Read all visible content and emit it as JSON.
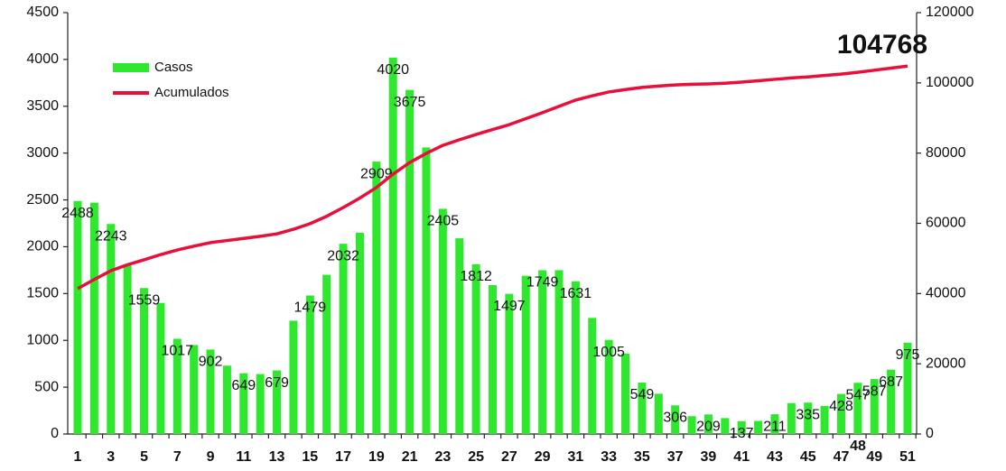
{
  "chart_data": {
    "type": "bar_line",
    "categories": [
      "1",
      null,
      "3",
      null,
      "5",
      null,
      "7",
      null,
      "9",
      null,
      "11",
      null,
      "13",
      null,
      "15",
      null,
      "17",
      null,
      "19",
      null,
      "21",
      null,
      "23",
      null,
      "25",
      null,
      "27",
      null,
      "29",
      null,
      "31",
      null,
      "33",
      null,
      "35",
      null,
      "37",
      null,
      "39",
      null,
      "41",
      null,
      "43",
      null,
      "45",
      null,
      "47",
      null,
      "49",
      null,
      "51"
    ],
    "series": [
      {
        "name": "Casos",
        "color": "#2ee82e",
        "axis": "y",
        "values": [
          2488,
          2470,
          2243,
          1800,
          1559,
          1400,
          1017,
          950,
          902,
          730,
          649,
          640,
          679,
          1210,
          1479,
          1700,
          2032,
          2150,
          2909,
          4020,
          3675,
          3060,
          2405,
          2090,
          1812,
          1590,
          1497,
          1690,
          1749,
          1750,
          1631,
          1240,
          1005,
          860,
          549,
          430,
          306,
          190,
          209,
          170,
          137,
          140,
          211,
          330,
          335,
          300,
          428,
          547,
          587,
          687,
          975
        ],
        "value_labels": [
          "2488",
          null,
          "2243",
          null,
          "1559",
          null,
          "1017",
          null,
          "902",
          null,
          "649",
          null,
          "679",
          null,
          "1479",
          null,
          "2032",
          null,
          "2909",
          "4020",
          "3675",
          null,
          "2405",
          null,
          "1812",
          null,
          "1497",
          null,
          "1749",
          null,
          "1631",
          null,
          "1005",
          null,
          "549",
          null,
          "306",
          null,
          "209",
          null,
          "137",
          null,
          "211",
          null,
          "335",
          null,
          "428",
          "547",
          "587",
          "687",
          "975"
        ]
      },
      {
        "name": "Acumulados",
        "color": "#e8103a",
        "axis": "y2",
        "values": [
          41400,
          44000,
          46500,
          48200,
          49600,
          51100,
          52400,
          53500,
          54500,
          55100,
          55700,
          56300,
          57000,
          58300,
          59900,
          62000,
          64500,
          67200,
          70200,
          74000,
          77300,
          79900,
          82200,
          83800,
          85300,
          86700,
          88100,
          89800,
          91500,
          93300,
          95100,
          96300,
          97400,
          98100,
          98700,
          99100,
          99400,
          99600,
          99700,
          99900,
          100200,
          100600,
          101000,
          101400,
          101700,
          102100,
          102500,
          103000,
          103600,
          104200,
          104768
        ],
        "value_labels": [
          null,
          null,
          null,
          null,
          null,
          null,
          null,
          null,
          null,
          null,
          null,
          null,
          null,
          null,
          null,
          null,
          null,
          null,
          null,
          null,
          null,
          null,
          null,
          null,
          null,
          null,
          null,
          null,
          null,
          null,
          null,
          null,
          null,
          null,
          null,
          null,
          null,
          null,
          null,
          null,
          null,
          null,
          null,
          null,
          null,
          null,
          null,
          null,
          null,
          null,
          "104768"
        ]
      }
    ],
    "ylim": [
      0,
      4500
    ],
    "yticks": [
      0,
      500,
      1000,
      1500,
      2000,
      2500,
      3000,
      3500,
      4000,
      4500
    ],
    "y2lim": [
      0,
      120000
    ],
    "y2ticks": [
      0,
      20000,
      40000,
      60000,
      80000,
      100000,
      120000
    ],
    "annotations": [
      "48"
    ],
    "legend": "upper left",
    "grid": false
  }
}
